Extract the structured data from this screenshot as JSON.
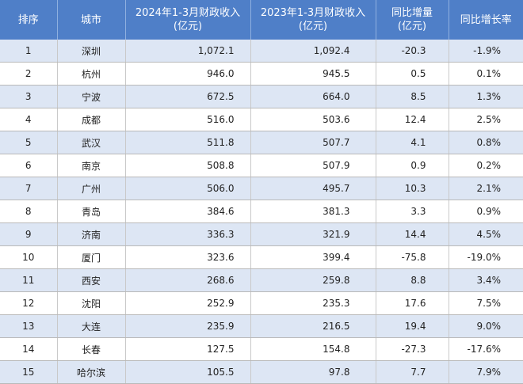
{
  "header": {
    "rank": "排序",
    "city": "城市",
    "rev2024": "2024年1-3月财政收入\n(亿元)",
    "rev2023": "2023年1-3月财政收入\n(亿元)",
    "yoy_increase": "同比增量\n(亿元)",
    "yoy_rate": "同比增长率"
  },
  "rows": [
    {
      "rank": "1",
      "city": "深圳",
      "rev2024": "1,072.1",
      "rev2023": "1,092.4",
      "inc": "-20.3",
      "rate": "-1.9%"
    },
    {
      "rank": "2",
      "city": "杭州",
      "rev2024": "946.0",
      "rev2023": "945.5",
      "inc": "0.5",
      "rate": "0.1%"
    },
    {
      "rank": "3",
      "city": "宁波",
      "rev2024": "672.5",
      "rev2023": "664.0",
      "inc": "8.5",
      "rate": "1.3%"
    },
    {
      "rank": "4",
      "city": "成都",
      "rev2024": "516.0",
      "rev2023": "503.6",
      "inc": "12.4",
      "rate": "2.5%"
    },
    {
      "rank": "5",
      "city": "武汉",
      "rev2024": "511.8",
      "rev2023": "507.7",
      "inc": "4.1",
      "rate": "0.8%"
    },
    {
      "rank": "6",
      "city": "南京",
      "rev2024": "508.8",
      "rev2023": "507.9",
      "inc": "0.9",
      "rate": "0.2%"
    },
    {
      "rank": "7",
      "city": "广州",
      "rev2024": "506.0",
      "rev2023": "495.7",
      "inc": "10.3",
      "rate": "2.1%"
    },
    {
      "rank": "8",
      "city": "青岛",
      "rev2024": "384.6",
      "rev2023": "381.3",
      "inc": "3.3",
      "rate": "0.9%"
    },
    {
      "rank": "9",
      "city": "济南",
      "rev2024": "336.3",
      "rev2023": "321.9",
      "inc": "14.4",
      "rate": "4.5%"
    },
    {
      "rank": "10",
      "city": "厦门",
      "rev2024": "323.6",
      "rev2023": "399.4",
      "inc": "-75.8",
      "rate": "-19.0%"
    },
    {
      "rank": "11",
      "city": "西安",
      "rev2024": "268.6",
      "rev2023": "259.8",
      "inc": "8.8",
      "rate": "3.4%"
    },
    {
      "rank": "12",
      "city": "沈阳",
      "rev2024": "252.9",
      "rev2023": "235.3",
      "inc": "17.6",
      "rate": "7.5%"
    },
    {
      "rank": "13",
      "city": "大连",
      "rev2024": "235.9",
      "rev2023": "216.5",
      "inc": "19.4",
      "rate": "9.0%"
    },
    {
      "rank": "14",
      "city": "长春",
      "rev2024": "127.5",
      "rev2023": "154.8",
      "inc": "-27.3",
      "rate": "-17.6%"
    },
    {
      "rank": "15",
      "city": "哈尔滨",
      "rev2024": "105.5",
      "rev2023": "97.8",
      "inc": "7.7",
      "rate": "7.9%"
    }
  ],
  "colors": {
    "header_bg": "#4f7fc8",
    "alt_row_bg": "#dde6f4",
    "row_bg": "#ffffff"
  }
}
